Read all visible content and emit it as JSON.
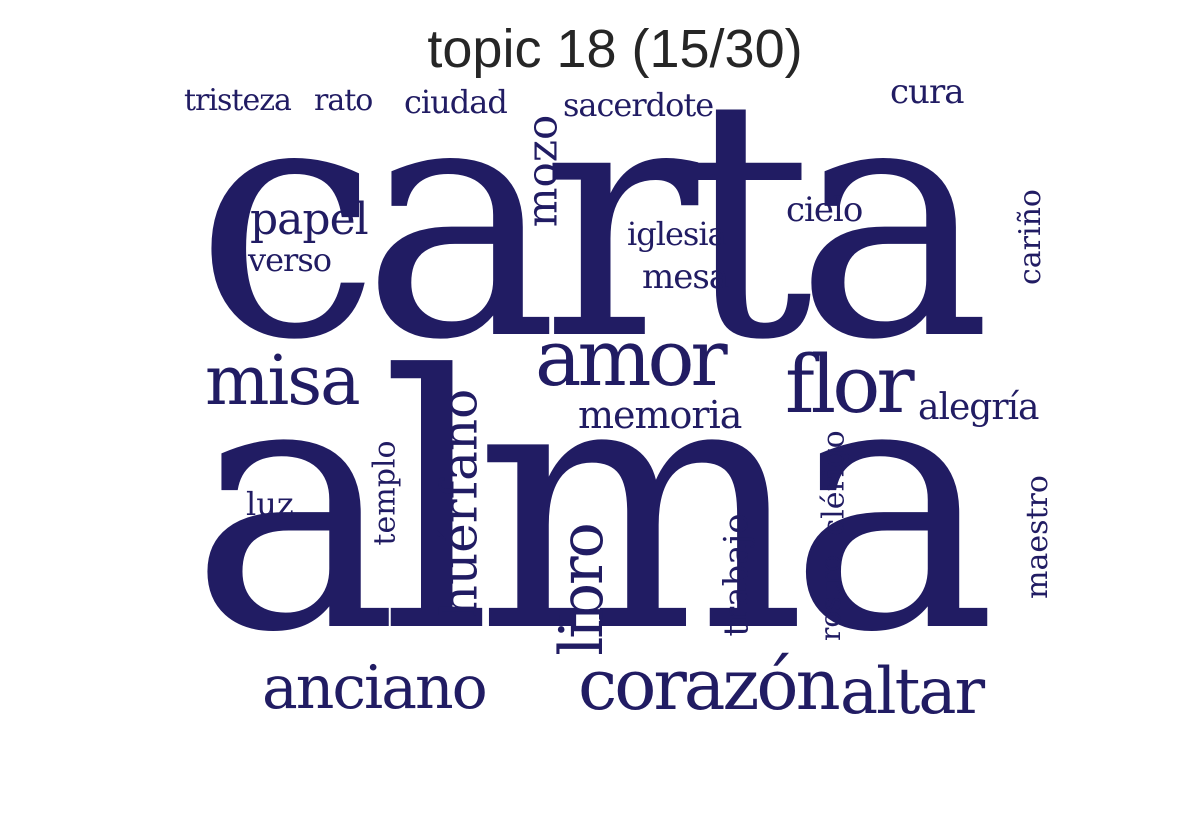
{
  "title": "topic 18 (15/30)",
  "color": "#211c63",
  "words": [
    {
      "text": "carta"
    },
    {
      "text": "alma"
    },
    {
      "text": "amor"
    },
    {
      "text": "flor"
    },
    {
      "text": "misa"
    },
    {
      "text": "corazón"
    },
    {
      "text": "anciano"
    },
    {
      "text": "altar"
    },
    {
      "text": "libro"
    },
    {
      "text": "huérfano"
    },
    {
      "text": "mozo"
    },
    {
      "text": "papel"
    },
    {
      "text": "verso"
    },
    {
      "text": "memoria"
    },
    {
      "text": "alegría"
    },
    {
      "text": "tristeza"
    },
    {
      "text": "rato"
    },
    {
      "text": "ciudad"
    },
    {
      "text": "sacerdote"
    },
    {
      "text": "cura"
    },
    {
      "text": "cielo"
    },
    {
      "text": "iglesia"
    },
    {
      "text": "mesa"
    },
    {
      "text": "cariño"
    },
    {
      "text": "templo"
    },
    {
      "text": "luz"
    },
    {
      "text": "trabajo"
    },
    {
      "text": "clérigo"
    },
    {
      "text": "rostro"
    },
    {
      "text": "maestro"
    }
  ]
}
